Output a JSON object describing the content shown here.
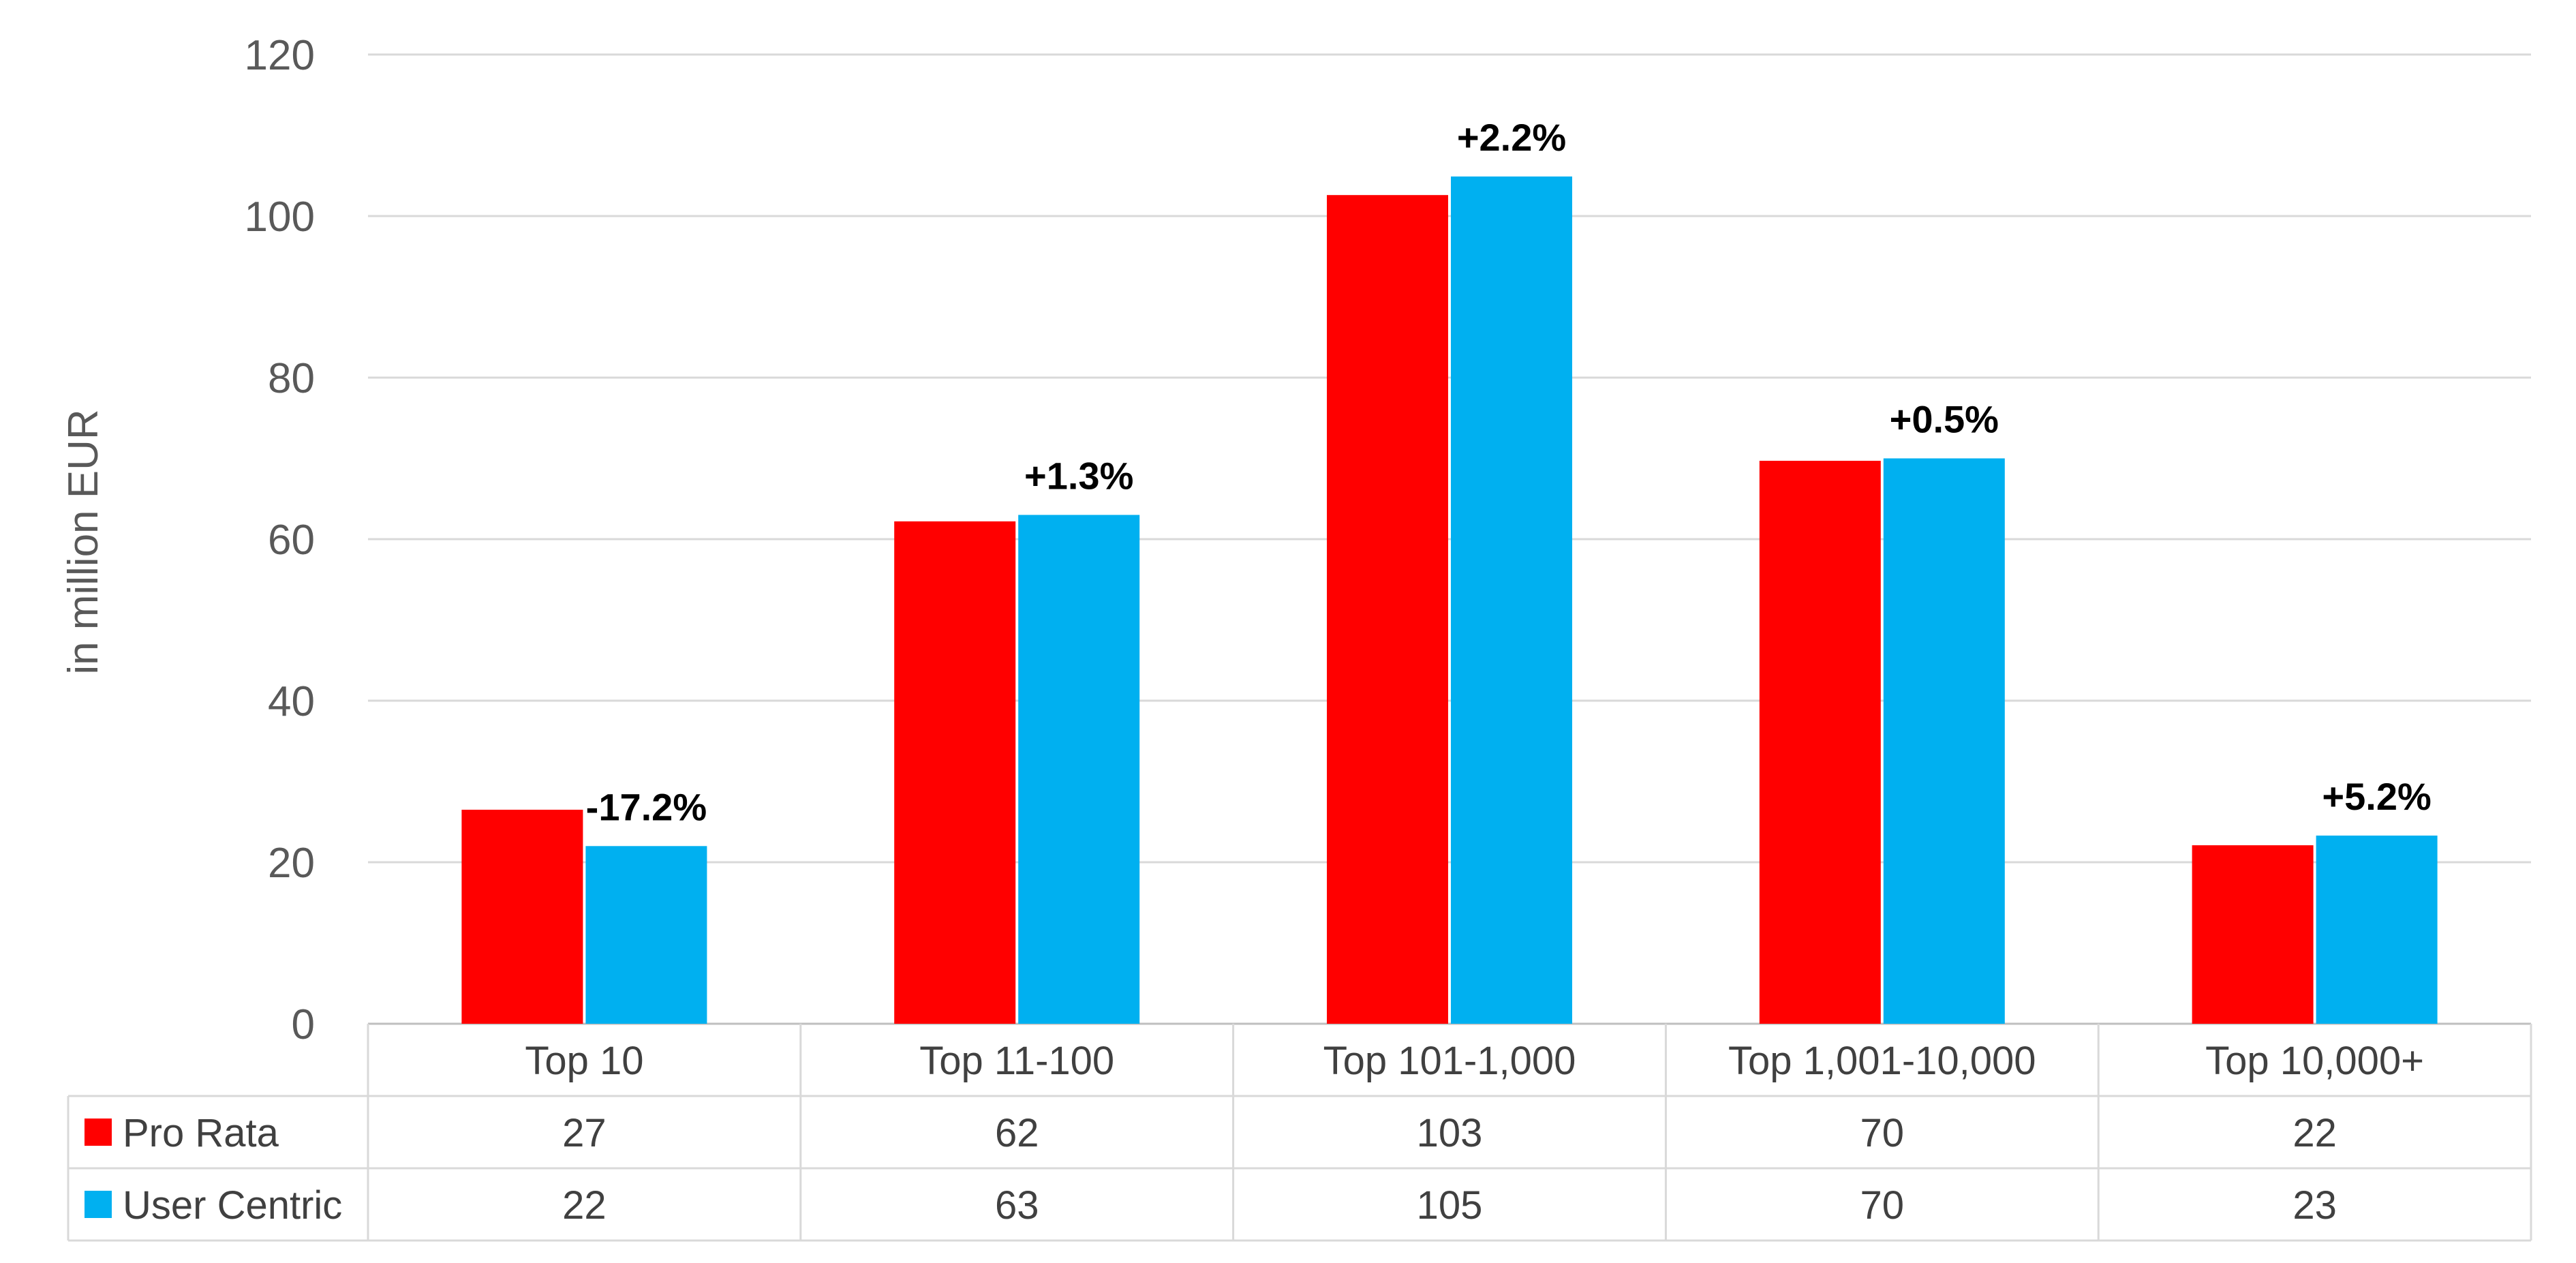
{
  "chart_data": {
    "type": "bar",
    "ylabel": "in million EUR",
    "ylim": [
      0,
      120
    ],
    "yticks": [
      0,
      20,
      40,
      60,
      80,
      100,
      120
    ],
    "grid": true,
    "categories": [
      "Top 10",
      "Top 11-100",
      "Top 101-1,000",
      "Top 1,001-10,000",
      "Top 10,000+"
    ],
    "series": [
      {
        "name": "Pro Rata",
        "color": "#ff0000",
        "values": [
          26.5,
          62.2,
          102.6,
          69.7,
          22.1
        ],
        "table_values": [
          "27",
          "62",
          "103",
          "70",
          "22"
        ]
      },
      {
        "name": "User Centric",
        "color": "#00b0f0",
        "values": [
          22.0,
          63.0,
          104.9,
          70.0,
          23.3
        ],
        "table_values": [
          "22",
          "63",
          "105",
          "70",
          "23"
        ]
      }
    ],
    "annotations": [
      "-17.2%",
      "+1.3%",
      "+2.2%",
      "+0.5%",
      "+5.2%"
    ],
    "legend_placement": "data-table"
  }
}
